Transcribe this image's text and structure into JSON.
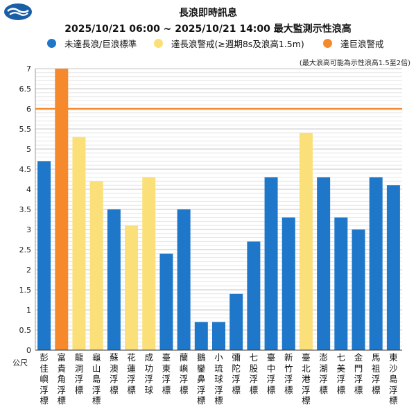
{
  "header": {
    "title_line1": "長浪即時訊息",
    "title_line2": "2025/10/21 06:00 ~ 2025/10/21 14:00 最大監測示性浪高"
  },
  "legend": [
    {
      "label": "未達長浪/巨浪標準",
      "color": "#1f77c9"
    },
    {
      "label": "達長浪警戒(≥週期8s及浪高1.5m)",
      "color": "#fbe07a"
    },
    {
      "label": "達巨浪警戒",
      "color": "#f7892d"
    }
  ],
  "note": "(最大浪高可能為示性浪高1.5至2倍)",
  "colors": {
    "none": "#1f77c9",
    "long_wave": "#fbe07a",
    "huge_wave": "#f7892d",
    "threshold": "#f7892d",
    "grid": "#d3d3d3",
    "logo": "#1a5fa6"
  },
  "chart_data": {
    "type": "bar",
    "ylabel": "公尺",
    "ylim": [
      0,
      7
    ],
    "yticks": [
      "0",
      "0.5",
      "1",
      "1.5",
      "2",
      "2.5",
      "3",
      "3.5",
      "4",
      "4.5",
      "5",
      "5.5",
      "6",
      "6.5",
      "7"
    ],
    "threshold_line": 6,
    "categories": [
      "彭佳嶼浮標",
      "富貴角浮標",
      "龍洞浮標",
      "龜山島浮標",
      "蘇澳浮標",
      "花蓮浮標",
      "成功浮球",
      "臺東浮標",
      "蘭嶼浮標",
      "鵝鑾鼻浮標",
      "小琉球浮標",
      "彌陀浮標",
      "七股浮標",
      "臺中浮標",
      "新竹浮標",
      "臺北港浮標",
      "澎湖浮標",
      "七美浮標",
      "金門浮標",
      "馬祖浮標",
      "東沙島浮標"
    ],
    "values": [
      4.7,
      7.0,
      5.3,
      4.2,
      3.5,
      3.1,
      4.3,
      2.4,
      3.5,
      0.7,
      0.7,
      1.4,
      2.7,
      4.3,
      3.3,
      5.4,
      4.3,
      3.3,
      3.0,
      4.3,
      4.1
    ],
    "status": [
      "none",
      "huge_wave",
      "long_wave",
      "long_wave",
      "none",
      "long_wave",
      "long_wave",
      "none",
      "none",
      "none",
      "none",
      "none",
      "none",
      "none",
      "none",
      "long_wave",
      "none",
      "none",
      "none",
      "none",
      "none"
    ]
  }
}
